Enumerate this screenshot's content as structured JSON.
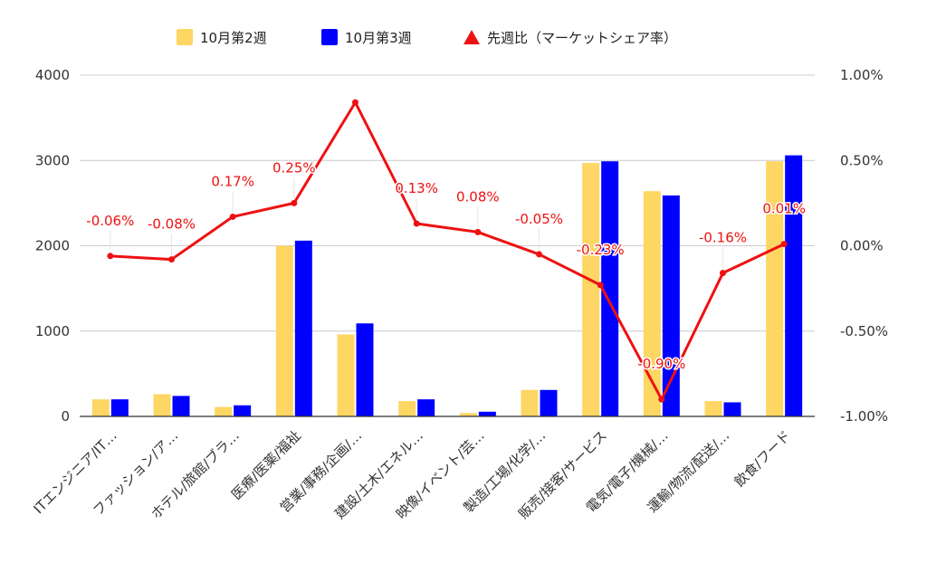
{
  "chart_data": {
    "type": "bar",
    "categories": [
      "ITエンジニア/IT…",
      "ファッション/ア…",
      "ホテル/旅館/ブラ…",
      "医療/医薬/福祉",
      "営業/事務/企画/…",
      "建設/土木/エネル…",
      "映像/イベント/芸…",
      "製造/工場/化学/…",
      "販売/接客/サービス",
      "電気/電子/機械/…",
      "運輸/物流/配送/…",
      "飲食/フード"
    ],
    "series": [
      {
        "name": "10月第2週",
        "type": "bar",
        "axis": "left",
        "color": "#fdd663",
        "values": [
          200,
          260,
          110,
          2000,
          960,
          180,
          40,
          310,
          2970,
          2640,
          180,
          2990
        ]
      },
      {
        "name": "10月第3週",
        "type": "bar",
        "axis": "left",
        "color": "#0000ff",
        "values": [
          200,
          240,
          130,
          2060,
          1090,
          200,
          55,
          310,
          2990,
          2590,
          165,
          3060
        ]
      },
      {
        "name": "先週比（マーケットシェア率）",
        "type": "line",
        "axis": "right",
        "color": "#ee1111",
        "values": [
          -0.06,
          -0.08,
          0.17,
          0.25,
          0.84,
          0.13,
          0.08,
          -0.05,
          -0.23,
          -0.9,
          -0.16,
          0.01
        ],
        "labels": [
          "-0.06%",
          "-0.08%",
          "0.17%",
          "0.25%",
          "",
          "0.13%",
          "0.08%",
          "-0.05%",
          "-0.23%",
          "-0.90%",
          "-0.16%",
          "0.01%"
        ]
      }
    ],
    "y_left": {
      "min": 0,
      "max": 4000,
      "ticks": [
        "0",
        "1000",
        "2000",
        "3000",
        "4000"
      ]
    },
    "y_right": {
      "min": -1.0,
      "max": 1.0,
      "ticks": [
        "-1.00%",
        "-0.50%",
        "0.00%",
        "0.50%",
        "1.00%"
      ]
    },
    "legend": {
      "position": "top",
      "entries": [
        "10月第2週",
        "10月第3週",
        "先週比（マーケットシェア率）"
      ]
    },
    "grid": true,
    "title": "",
    "xlabel": "",
    "ylabel": ""
  }
}
